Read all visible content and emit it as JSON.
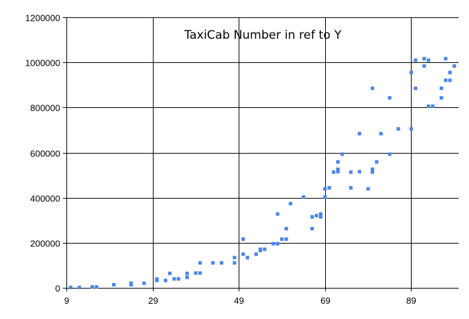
{
  "chart_data": {
    "type": "scatter",
    "title": "TaxiCab Number in ref to Y",
    "xlabel": "",
    "ylabel": "",
    "xlim": [
      9,
      100
    ],
    "ylim": [
      0,
      1200000
    ],
    "x_ticks": [
      9,
      29,
      49,
      69,
      89
    ],
    "x_tick_labels": [
      "9",
      "29",
      "49",
      "69",
      "89"
    ],
    "y_ticks": [
      0,
      200000,
      400000,
      600000,
      800000,
      1000000,
      1200000
    ],
    "y_tick_labels": [
      "0",
      "200000",
      "400000",
      "600000",
      "800000",
      "1000000",
      "1200000"
    ],
    "grid": true,
    "legend": "none",
    "marker_color": "#4a86e8",
    "series": [
      {
        "x": [
          10,
          12,
          15,
          16,
          20,
          24,
          24,
          27,
          30,
          30,
          32,
          33,
          34,
          35,
          37,
          37,
          39,
          40,
          40,
          43,
          45,
          48,
          48,
          50,
          50,
          51,
          53,
          54,
          54,
          55,
          57,
          58,
          58,
          59,
          60,
          60,
          61,
          64,
          66,
          66,
          67,
          68,
          68,
          69,
          69,
          70,
          71,
          72,
          72,
          72,
          73,
          75,
          75,
          77,
          77,
          79,
          80,
          80,
          80,
          81,
          82,
          84,
          84,
          86,
          89,
          89,
          90,
          90,
          92,
          92,
          93,
          93,
          94,
          96,
          96,
          97,
          97,
          98,
          98,
          99
        ],
        "y": [
          1729,
          1729,
          4104,
          4104,
          13832,
          20683,
          13832,
          20683,
          32832,
          39312,
          32832,
          64232,
          40033,
          40033,
          46683,
          64232,
          65728,
          65728,
          110656,
          110808,
          110656,
          134379,
          110808,
          149389,
          216027,
          134379,
          149389,
          165464,
          171288,
          171288,
          195841,
          195841,
          327763,
          216027,
          216125,
          262656,
          373464,
          402597,
          262656,
          314496,
          320264,
          327763,
          314496,
          402597,
          439101,
          443889,
          513000,
          515375,
          525824,
          558441,
          593047,
          443889,
          513000,
          684019,
          515375,
          439101,
          513000,
          525824,
          885248,
          558441,
          684019,
          593047,
          842751,
          704977,
          704977,
          955016,
          1009736,
          885248,
          1016496,
          984067,
          805688,
          1009736,
          805688,
          842751,
          885248,
          920673,
          1016496,
          920673,
          955016,
          984067
        ]
      }
    ]
  }
}
